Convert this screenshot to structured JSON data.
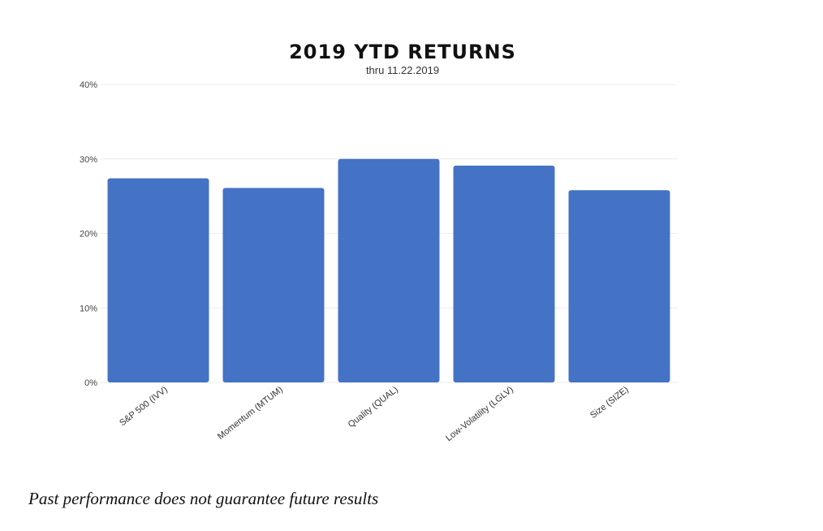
{
  "chart_data": {
    "type": "bar",
    "title": "2019 YTD RETURNS",
    "subtitle": "thru 11.22.2019",
    "categories": [
      "S&P 500 (IVV)",
      "Momentum (MTUM)",
      "Quality (QUAL)",
      "Low-Volatility (LGLV)",
      "Size (SIZE)"
    ],
    "values": [
      27.4,
      26.1,
      30.0,
      29.1,
      25.8
    ],
    "ylim": [
      0,
      40
    ],
    "yticks": [
      0,
      10,
      20,
      30,
      40
    ],
    "ytick_labels": [
      "0%",
      "10%",
      "20%",
      "30%",
      "40%"
    ],
    "xlabel": "",
    "ylabel": "",
    "bar_color": "#4472c4",
    "grid": true,
    "legend": "none"
  },
  "footer": {
    "disclaimer": "Past performance does not guarantee future results"
  }
}
